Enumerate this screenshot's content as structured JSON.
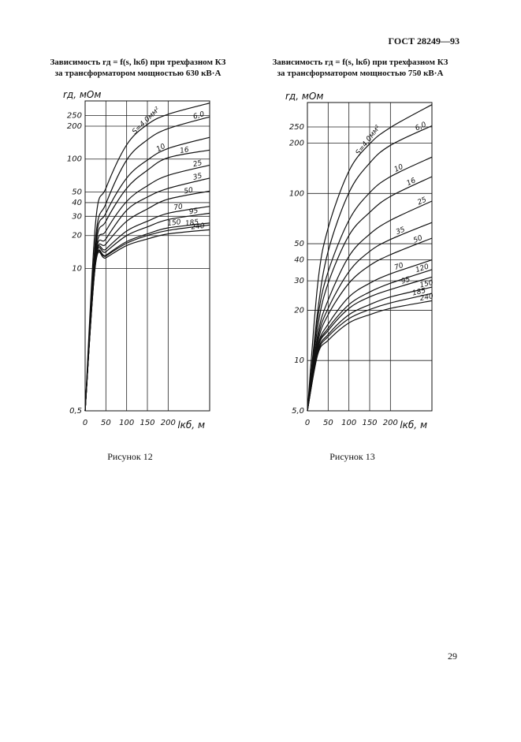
{
  "header": "ГОСТ 28249—93",
  "page_number": "29",
  "chart_data": [
    {
      "type": "line",
      "title": "Зависимость rд = f(s, lкб) при трехфазном КЗ",
      "subtitle": "за трансформатором мощностью 630 кВ·А",
      "ylabel": "rд, мОм",
      "xlabel": "lкб, м",
      "caption": "Рисунок 12",
      "y_scale": "log",
      "grid": true,
      "color": "#111111",
      "xlim": [
        0,
        300
      ],
      "xticks": [
        0,
        50,
        100,
        150,
        200
      ],
      "ylim": [
        0.5,
        340
      ],
      "yticks": [
        {
          "value": 0.5,
          "label": "0,5"
        },
        10,
        20,
        30,
        40,
        50,
        100,
        200,
        250
      ],
      "x": [
        0,
        25,
        50,
        100,
        150,
        200,
        300
      ],
      "series": [
        {
          "name": "S=4,0мм²",
          "values": [
            0.5,
            26,
            54,
            135,
            207,
            257,
            325
          ]
        },
        {
          "name": "6,0",
          "values": [
            0.5,
            18.6,
            39,
            98,
            150,
            190,
            243
          ]
        },
        {
          "name": "10",
          "values": [
            0.5,
            16.7,
            32,
            67,
            98,
            125,
            158
          ]
        },
        {
          "name": "16",
          "values": [
            0.5,
            15,
            27,
            54,
            79,
            103,
            121
          ]
        },
        {
          "name": "25",
          "values": [
            0.5,
            13.5,
            22,
            41,
            57,
            71,
            88
          ]
        },
        {
          "name": "35",
          "values": [
            0.5,
            12.8,
            18.6,
            34,
            45,
            54,
            67
          ]
        },
        {
          "name": "50",
          "values": [
            0.5,
            12,
            16.7,
            27,
            35,
            43,
            51
          ]
        },
        {
          "name": "70",
          "values": [
            0.5,
            12,
            15,
            22,
            27,
            32,
            37
          ]
        },
        {
          "name": "95",
          "values": [
            0.5,
            11.7,
            14.2,
            20,
            24,
            28,
            32
          ]
        },
        {
          "name": "150",
          "values": [
            0.5,
            11.3,
            13.2,
            17.6,
            20.7,
            23.5,
            26
          ]
        },
        {
          "name": "185",
          "values": [
            0.5,
            11.1,
            13,
            17,
            20,
            22.3,
            25
          ]
        },
        {
          "name": "240",
          "values": [
            0.5,
            10.9,
            12.5,
            16.2,
            18.6,
            20.7,
            22.6
          ]
        }
      ]
    },
    {
      "type": "line",
      "title": "Зависимость rд = f(s, lкб) при трехфазном КЗ",
      "subtitle": "за трансформатором мощностью 750 кВ·А",
      "ylabel": "rд, мОм",
      "xlabel": "lкб, м",
      "caption": "Рисунок 13",
      "y_scale": "log",
      "grid": true,
      "color": "#111111",
      "xlim": [
        0,
        300
      ],
      "xticks": [
        0,
        50,
        100,
        150,
        200
      ],
      "ylim": [
        5,
        350
      ],
      "yticks": [
        {
          "value": 5,
          "label": "5,0"
        },
        10,
        20,
        30,
        40,
        50,
        100,
        200,
        250
      ],
      "x": [
        0,
        25,
        50,
        100,
        150,
        200,
        300
      ],
      "series": [
        {
          "name": "S=4,0мм²",
          "values": [
            5,
            29,
            62,
            136,
            198,
            248,
            340
          ]
        },
        {
          "name": "6,0",
          "values": [
            5,
            20,
            45,
            101,
            152,
            194,
            254
          ]
        },
        {
          "name": "10",
          "values": [
            5,
            18,
            34,
            69,
            101,
            126,
            165
          ]
        },
        {
          "name": "16",
          "values": [
            5,
            16,
            29,
            56,
            77,
            96,
            126
          ]
        },
        {
          "name": "25",
          "values": [
            5,
            14.3,
            23,
            42,
            57,
            69,
            90
          ]
        },
        {
          "name": "35",
          "values": [
            5,
            13.5,
            20.5,
            34,
            45,
            53,
            67
          ]
        },
        {
          "name": "50",
          "values": [
            5,
            12.8,
            18.8,
            29,
            37,
            43,
            54
          ]
        },
        {
          "name": "70",
          "values": [
            5,
            12.2,
            16.5,
            24,
            29,
            33,
            40
          ]
        },
        {
          "name": "120",
          "values": [
            5,
            11.9,
            15.6,
            21.6,
            25.7,
            29,
            35
          ]
        },
        {
          "name": "95",
          "values": [
            5,
            11.8,
            15.1,
            20.5,
            24,
            26.6,
            31.6
          ]
        },
        {
          "name": "150",
          "values": [
            5,
            11.4,
            14.3,
            18.8,
            21.6,
            24,
            27.5
          ]
        },
        {
          "name": "185",
          "values": [
            5,
            11.1,
            13.9,
            17.8,
            20.2,
            22.1,
            25.2
          ]
        },
        {
          "name": "240",
          "values": [
            5,
            10.9,
            13.2,
            16.8,
            18.8,
            20.5,
            22.8
          ]
        }
      ]
    }
  ]
}
